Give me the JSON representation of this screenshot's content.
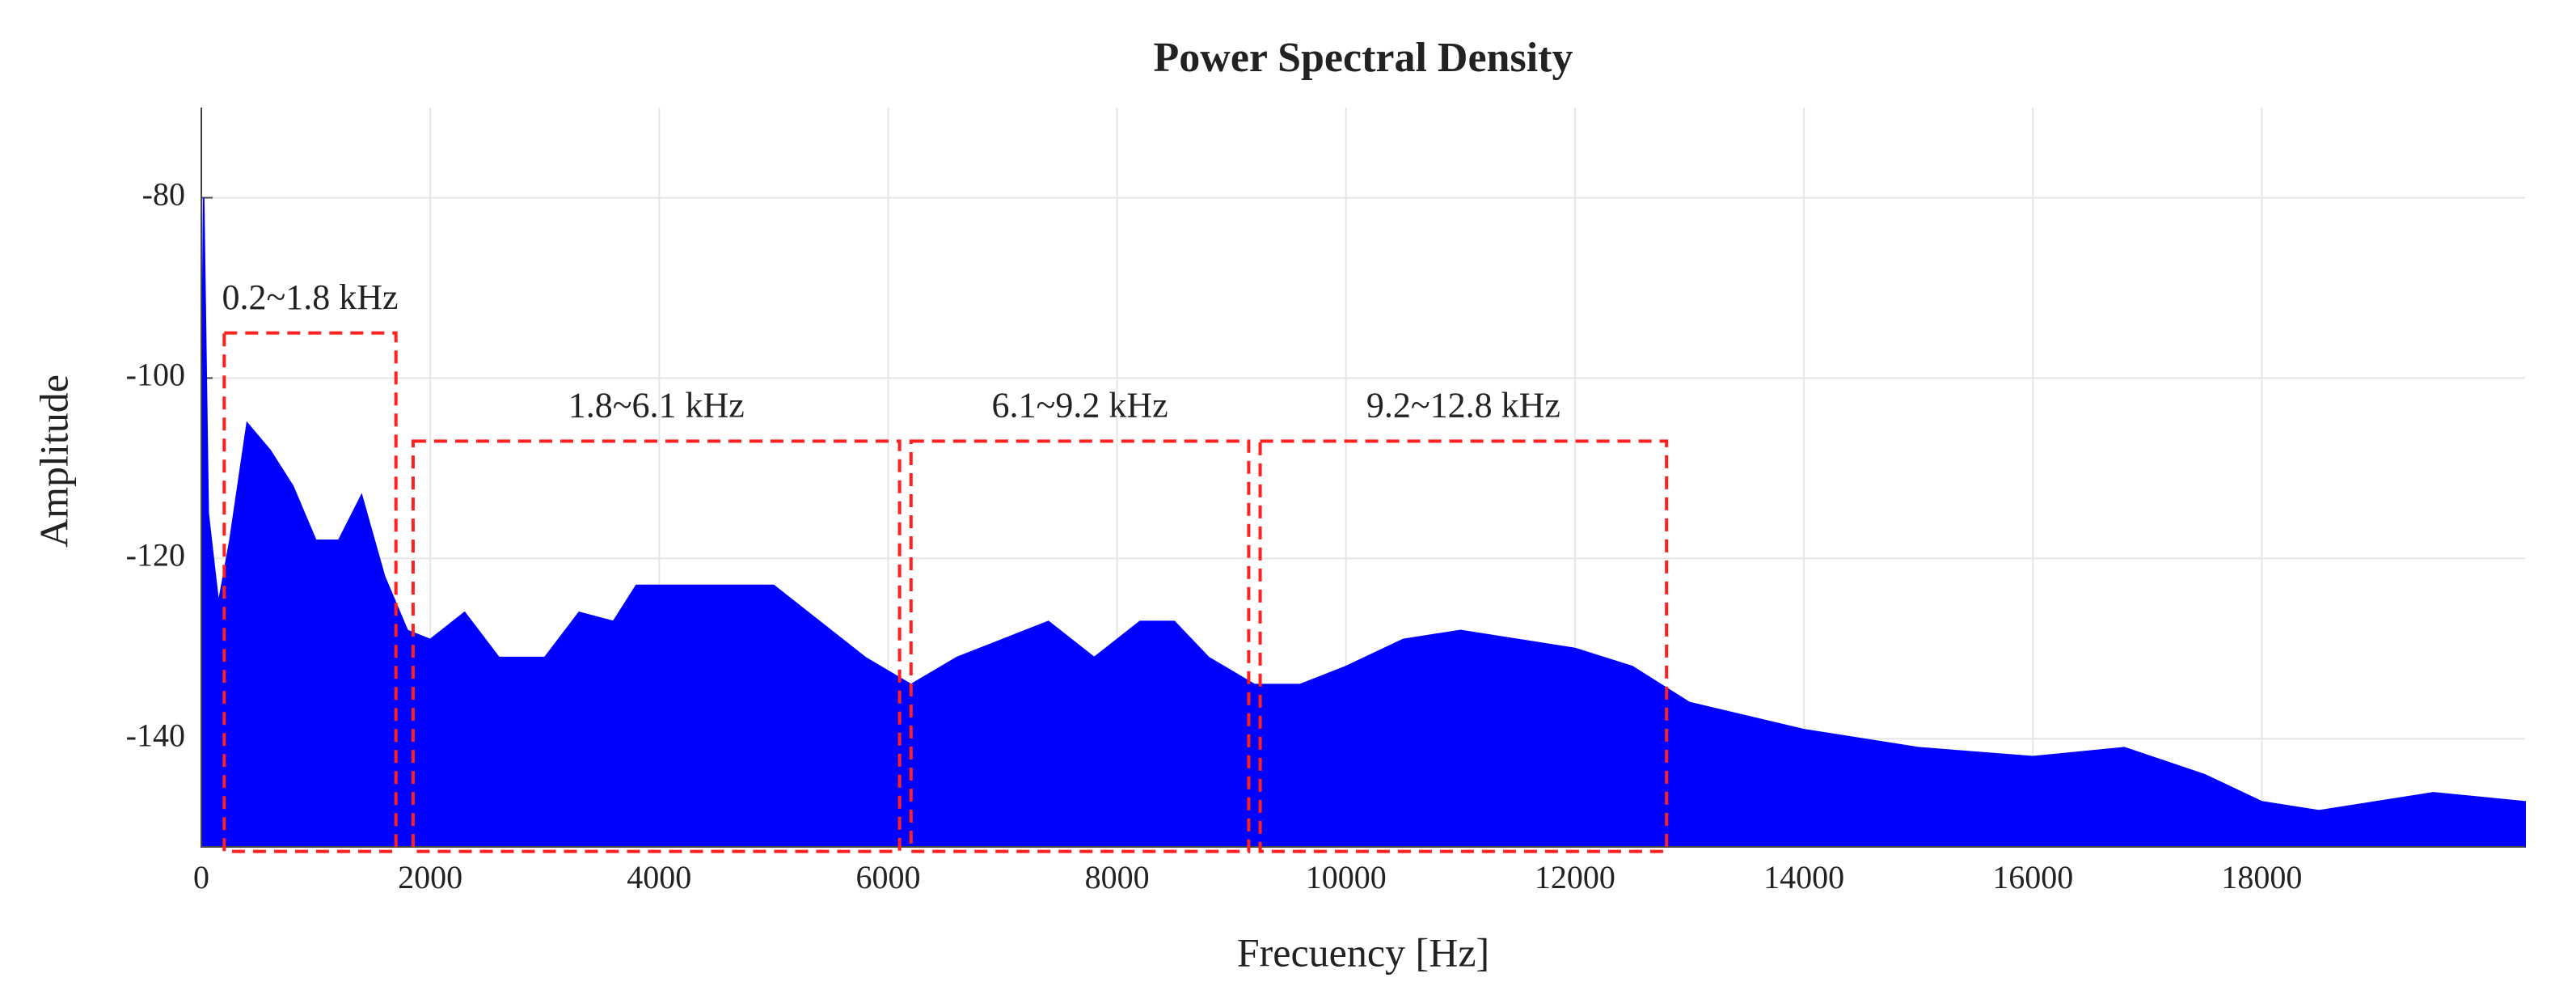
{
  "chart_data": {
    "type": "area",
    "title": "Power Spectral Density",
    "xlabel": "Frecuency [Hz]",
    "ylabel": "Amplitude",
    "x": [
      0,
      20,
      60,
      150,
      250,
      400,
      600,
      800,
      1000,
      1200,
      1400,
      1600,
      1800,
      2000,
      2300,
      2600,
      3000,
      3300,
      3600,
      3800,
      4200,
      4600,
      5000,
      5400,
      5800,
      6200,
      6600,
      7000,
      7400,
      7800,
      8200,
      8500,
      8800,
      9200,
      9600,
      10000,
      10500,
      11000,
      11500,
      12000,
      12500,
      13000,
      14000,
      15000,
      16000,
      16800,
      17500,
      18000,
      18500,
      19000,
      19500,
      20300
    ],
    "values": [
      -112,
      -80,
      -115,
      -125,
      -118,
      -105,
      -108,
      -112,
      -118,
      -118,
      -113,
      -122,
      -128,
      -129,
      -126,
      -131,
      -131,
      -126,
      -127,
      -123,
      -123,
      -123,
      -123,
      -127,
      -131,
      -134,
      -131,
      -129,
      -127,
      -131,
      -127,
      -127,
      -131,
      -134,
      -134,
      -132,
      -129,
      -128,
      -129,
      -130,
      -132,
      -136,
      -139,
      -141,
      -142,
      -141,
      -144,
      -147,
      -148,
      -147,
      -146,
      -147
    ],
    "color": "#0000ff",
    "xlim": [
      0,
      20300
    ],
    "ylim": [
      -152,
      -70
    ],
    "xticks": [
      0,
      2000,
      4000,
      6000,
      8000,
      10000,
      12000,
      14000,
      16000,
      18000
    ],
    "yticks": [
      -80,
      -100,
      -120,
      -140
    ],
    "grid": true,
    "annotations": [
      {
        "label": "0.2~1.8 kHz",
        "x0": 200,
        "x1": 1700,
        "y0": -152.5,
        "y1": -95
      },
      {
        "label": "1.8~6.1 kHz",
        "x0": 1850,
        "x1": 6100,
        "y0": -152.5,
        "y1": -107
      },
      {
        "label": "6.1~9.2 kHz",
        "x0": 6200,
        "x1": 9150,
        "y0": -152.5,
        "y1": -107
      },
      {
        "label": "9.2~12.8 kHz",
        "x0": 9250,
        "x1": 12800,
        "y0": -152.5,
        "y1": -107
      }
    ]
  }
}
